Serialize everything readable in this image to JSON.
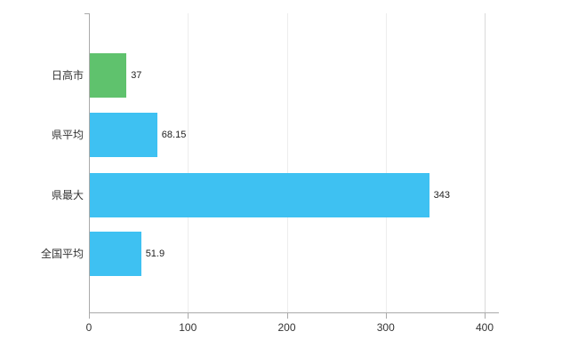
{
  "chart_data": {
    "type": "bar",
    "orientation": "horizontal",
    "title": "",
    "categories": [
      "日高市",
      "県平均",
      "県最大",
      "全国平均"
    ],
    "values": [
      37,
      68.15,
      343,
      51.9
    ],
    "value_labels": [
      "37",
      "68.15",
      "343",
      "51.9"
    ],
    "bar_colors": [
      "#5fc26d",
      "#3ec1f2",
      "#3ec1f2",
      "#3ec1f2"
    ],
    "xlim": [
      0,
      400
    ],
    "x_ticks": [
      "0",
      "100",
      "200",
      "300",
      "400"
    ],
    "grid": "vertical",
    "legend": "none"
  },
  "colors": {
    "axis": "#aaaaaa",
    "grid": "#ededed",
    "text": "#333333",
    "background": "#ffffff"
  }
}
